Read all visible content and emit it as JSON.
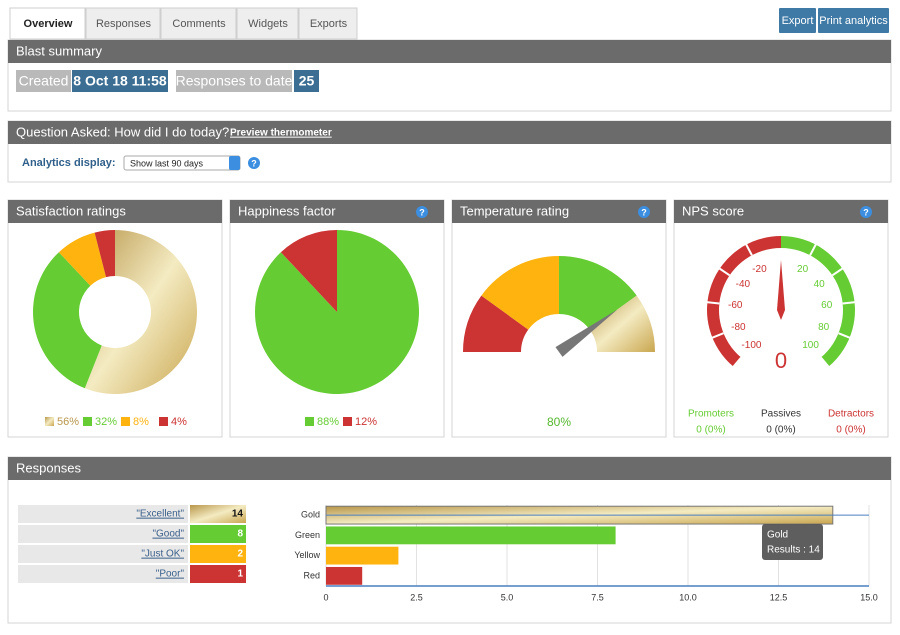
{
  "tabs": [
    "Overview",
    "Responses",
    "Comments",
    "Widgets",
    "Exports"
  ],
  "buttons": [
    "Export",
    "Print analytics"
  ],
  "help_icon": "?",
  "gradients": {
    "gold": [
      "#b8964a",
      "#f4ebc2",
      "#c9a64f"
    ]
  },
  "blast_summary": {
    "title": "Blast summary",
    "created_label": "Created",
    "created_value": "8 Oct 18 11:58",
    "responses_label": "Responses to date",
    "responses_value": 25
  },
  "question": {
    "title": "Question Asked: How did I do today?",
    "link": "Preview thermometer",
    "analytics_label": "Analytics display:",
    "select": "Show last 90 days"
  },
  "satisfaction": {
    "title": "Satisfaction ratings",
    "type": "donut",
    "values": [
      56,
      32,
      8,
      4
    ],
    "value_labels": [
      "56%",
      "32%",
      "8%",
      "4%"
    ],
    "colors": [
      "url(#gold)",
      "#66cc33",
      "#ffb30f",
      "#cc3333"
    ]
  },
  "happiness": {
    "title": "Happiness factor",
    "type": "pie",
    "values": [
      88,
      12
    ],
    "value_labels": [
      "88%",
      "12%"
    ],
    "colors": [
      "#66cc33",
      "#cc3333"
    ]
  },
  "temperature": {
    "title": "Temperature rating",
    "type": "gauge",
    "value": 80,
    "value_label": "80%",
    "lim": [
      0,
      100
    ],
    "bands": [
      {
        "from": 0,
        "to": 20,
        "color": "#cc3333"
      },
      {
        "from": 20,
        "to": 50,
        "color": "#ffb30f"
      },
      {
        "from": 50,
        "to": 80,
        "color": "#66cc33"
      },
      {
        "from": 80,
        "to": 100,
        "color": "url(#gold)"
      }
    ]
  },
  "nps": {
    "title": "NPS score",
    "type": "gauge",
    "value": 0,
    "lim": [
      -100,
      100
    ],
    "ticks": [
      -100,
      -80,
      -60,
      -40,
      -20,
      20,
      40,
      60,
      80,
      100
    ],
    "negative_color": "#cc3333",
    "positive_color": "#66cc33",
    "stats": [
      {
        "label": "Promoters",
        "value": "0 (0%)",
        "color": "#66cc33"
      },
      {
        "label": "Passives",
        "value": "0 (0%)",
        "color": "#333333"
      },
      {
        "label": "Detractors",
        "value": "0 (0%)",
        "color": "#cc3333"
      }
    ]
  },
  "responses": {
    "title": "Responses",
    "rows": [
      {
        "label": "\"Excellent\"",
        "count": 14,
        "color": "url(#gold)"
      },
      {
        "label": "\"Good\"",
        "count": 8,
        "color": "#66cc33"
      },
      {
        "label": "\"Just OK\"",
        "count": 2,
        "color": "#ffb30f"
      },
      {
        "label": "\"Poor\"",
        "count": 1,
        "color": "#cc3333"
      }
    ],
    "chart": {
      "type": "bar",
      "orientation": "horizontal",
      "categories": [
        "Gold",
        "Green",
        "Yellow",
        "Red"
      ],
      "values": [
        14,
        8,
        2,
        1
      ],
      "colors": [
        "url(#gold)",
        "#66cc33",
        "#ffb30f",
        "#cc3333"
      ],
      "xlim": [
        0,
        15
      ],
      "xticks": [
        0,
        2.5,
        {
          "value": 5,
          "label": "5.0"
        },
        7.5,
        {
          "value": 10,
          "label": "10.0"
        },
        12.5,
        {
          "value": 15,
          "label": "15.0"
        }
      ],
      "grid": true,
      "tooltip": {
        "title": "Gold",
        "text": "Results : 14"
      }
    }
  }
}
